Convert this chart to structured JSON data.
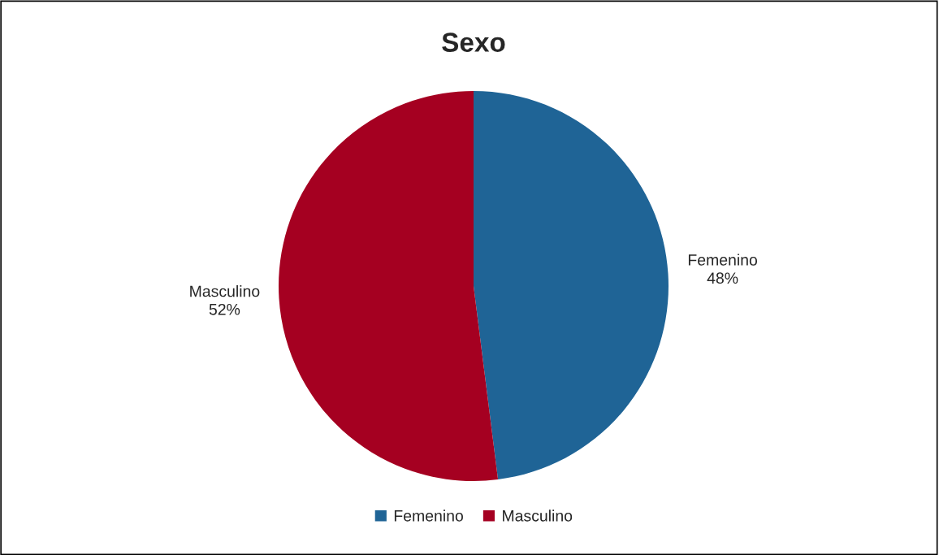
{
  "chart_data": {
    "type": "pie",
    "title": "Sexo",
    "categories": [
      "Femenino",
      "Masculino"
    ],
    "values": [
      48,
      52
    ],
    "colors": [
      "#1f6496",
      "#a50021"
    ],
    "value_labels": [
      "48%",
      "52%"
    ],
    "legend": "bottom"
  }
}
